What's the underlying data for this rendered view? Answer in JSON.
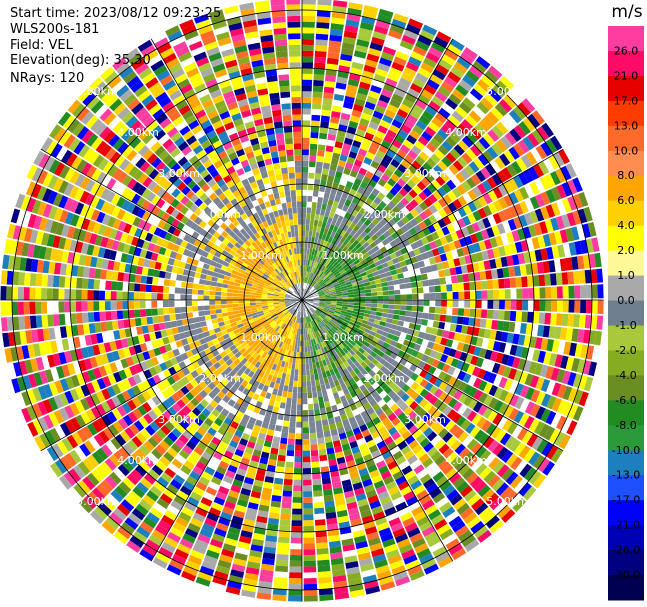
{
  "header": {
    "start_time": "Start time: 2023/08/12 09:23:25",
    "instrument": "WLS200s-181",
    "field": "Field: VEL",
    "elevation": "Elevation(deg): 35.30",
    "nrays": "NRays: 120"
  },
  "colorbar": {
    "unit": "m/s",
    "ticks": [
      "26.0",
      "21.0",
      "17.0",
      "13.0",
      "10.0",
      "8.0",
      "6.0",
      "4.0",
      "2.0",
      "1.0",
      "0.0",
      "-1.0",
      "-2.0",
      "-4.0",
      "-6.0",
      "-8.0",
      "-10.0",
      "-13.0",
      "-17.0",
      "-21.0",
      "-26.0",
      "-30.0"
    ],
    "colors": [
      "#ff3ca0",
      "#ff0a64",
      "#e60000",
      "#ff3c00",
      "#ff6a2a",
      "#ff8c50",
      "#ffa500",
      "#ffd000",
      "#ffff00",
      "#fff896",
      "#a9a9a9",
      "#6f7f8f",
      "#a7c93b",
      "#86ad22",
      "#6b8e23",
      "#228b22",
      "#2a9a3a",
      "#1e7fbe",
      "#1e50ff",
      "#0000ff",
      "#0000b4",
      "#000080",
      "#000050"
    ]
  },
  "chart_data": {
    "type": "heatmap",
    "subtype": "ppi_polar",
    "field": "VEL",
    "units": "m/s",
    "nrays": 120,
    "range_rings_km": [
      1.0,
      2.0,
      3.0,
      4.0,
      5.0
    ],
    "ring_labels": [
      "1.00km",
      "2.00km",
      "3.00km",
      "4.00km",
      "5.00km"
    ],
    "max_range_km": 5.2,
    "radials_deg": [
      0,
      30,
      60,
      90,
      120,
      150
    ],
    "color_scale_ticks": [
      26.0,
      21.0,
      17.0,
      13.0,
      10.0,
      8.0,
      6.0,
      4.0,
      2.0,
      1.0,
      0.0,
      -1.0,
      -2.0,
      -4.0,
      -6.0,
      -8.0,
      -10.0,
      -13.0,
      -17.0,
      -21.0,
      -26.0,
      -30.0
    ],
    "structure": {
      "inner_range_km": [
        0.0,
        1.6
      ],
      "west_side_velocity_ms": [
        2.0,
        6.0
      ],
      "east_side_velocity_ms": [
        -8.0,
        -2.0
      ],
      "transition_ring_km": [
        1.6,
        2.4
      ],
      "outer_noise_beyond_km": 2.4
    }
  }
}
